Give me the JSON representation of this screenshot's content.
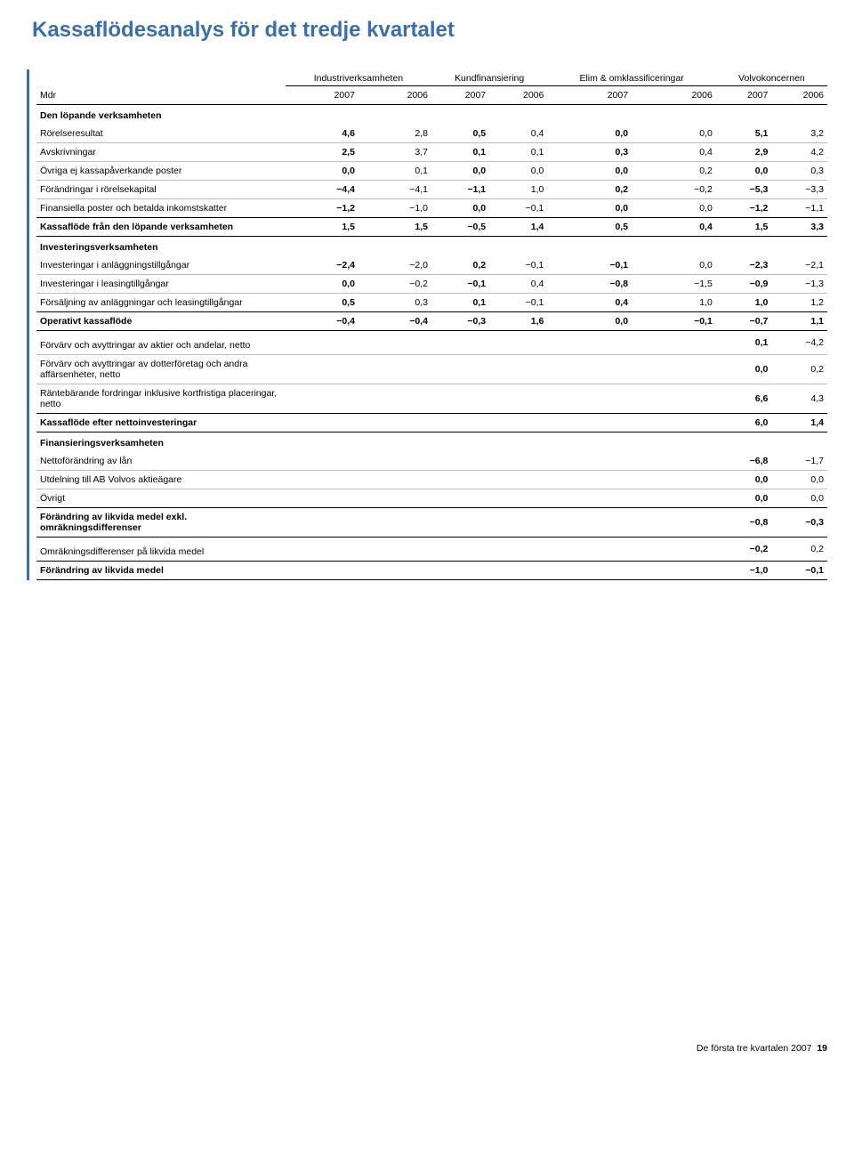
{
  "title": "Kassaflödesanalys för det tredje kvartalet",
  "header": {
    "mdr": "Mdr",
    "groups": [
      "Industriverksamheten",
      "Kundfinansiering",
      "Elim & omklassificeringar",
      "Volvokoncernen"
    ],
    "years": [
      "2007",
      "2006",
      "2007",
      "2006",
      "2007",
      "2006",
      "2007",
      "2006"
    ]
  },
  "sections": {
    "operating": {
      "label": "Den löpande verksamheten",
      "rows": [
        {
          "l": "Rörelseresultat",
          "v": [
            "4,6",
            "2,8",
            "0,5",
            "0,4",
            "0,0",
            "0,0",
            "5,1",
            "3,2"
          ]
        },
        {
          "l": "Avskrivningar",
          "v": [
            "2,5",
            "3,7",
            "0,1",
            "0,1",
            "0,3",
            "0,4",
            "2,9",
            "4,2"
          ]
        },
        {
          "l": "Övriga ej kassapåverkande poster",
          "v": [
            "0,0",
            "0,1",
            "0,0",
            "0,0",
            "0,0",
            "0,2",
            "0,0",
            "0,3"
          ]
        },
        {
          "l": "Förändringar i rörelsekapital",
          "v": [
            "−4,4",
            "−4,1",
            "−1,1",
            "1,0",
            "0,2",
            "−0,2",
            "−5,3",
            "−3,3"
          ]
        },
        {
          "l": "Finansiella poster och betalda inkomstskatter",
          "v": [
            "−1,2",
            "−1,0",
            "0,0",
            "−0,1",
            "0,0",
            "0,0",
            "−1,2",
            "−1,1"
          ]
        }
      ],
      "total": {
        "l": "Kassaflöde från den löpande verksamheten",
        "v": [
          "1,5",
          "1,5",
          "−0,5",
          "1,4",
          "0,5",
          "0,4",
          "1,5",
          "3,3"
        ]
      }
    },
    "investing": {
      "label": "Investeringsverksamheten",
      "rows": [
        {
          "l": "Investeringar i anläggningstillgångar",
          "v": [
            "−2,4",
            "−2,0",
            "0,2",
            "−0,1",
            "−0,1",
            "0,0",
            "−2,3",
            "−2,1"
          ]
        },
        {
          "l": "Investeringar i leasingtillgångar",
          "v": [
            "0,0",
            "−0,2",
            "−0,1",
            "0,4",
            "−0,8",
            "−1,5",
            "−0,9",
            "−1,3"
          ]
        },
        {
          "l": "Försäljning av anläggningar och leasingtillgångar",
          "v": [
            "0,5",
            "0,3",
            "0,1",
            "−0,1",
            "0,4",
            "1,0",
            "1,0",
            "1,2"
          ]
        }
      ],
      "total": {
        "l": "Operativt kassaflöde",
        "v": [
          "−0,4",
          "−0,4",
          "−0,3",
          "1,6",
          "0,0",
          "−0,1",
          "−0,7",
          "1,1"
        ]
      }
    },
    "acq": {
      "rows": [
        {
          "l": "Förvärv och avyttringar av aktier och andelar, netto",
          "v": [
            "",
            "",
            "",
            "",
            "",
            "",
            "0,1",
            "−4,2"
          ]
        },
        {
          "l": "Förvärv och avyttringar av dotterföretag och andra affärsenheter, netto",
          "v": [
            "",
            "",
            "",
            "",
            "",
            "",
            "0,0",
            "0,2"
          ]
        },
        {
          "l": "Räntebärande fordringar inklusive kortfristiga placeringar, netto",
          "v": [
            "",
            "",
            "",
            "",
            "",
            "",
            "6,6",
            "4,3"
          ]
        }
      ],
      "total": {
        "l": "Kassaflöde efter nettoinvesteringar",
        "v": [
          "",
          "",
          "",
          "",
          "",
          "",
          "6,0",
          "1,4"
        ]
      }
    },
    "financing": {
      "label": "Finansieringsverksamheten",
      "rows": [
        {
          "l": "Nettoförändring av lån",
          "v": [
            "",
            "",
            "",
            "",
            "",
            "",
            "−6,8",
            "−1,7"
          ]
        },
        {
          "l": "Utdelning till AB Volvos aktieägare",
          "v": [
            "",
            "",
            "",
            "",
            "",
            "",
            "0,0",
            "0,0"
          ]
        },
        {
          "l": "Övrigt",
          "v": [
            "",
            "",
            "",
            "",
            "",
            "",
            "0,0",
            "0,0"
          ]
        }
      ],
      "total": {
        "l": "Förändring av likvida medel exkl. omräkningsdifferenser",
        "v": [
          "",
          "",
          "",
          "",
          "",
          "",
          "−0,8",
          "−0,3"
        ]
      }
    },
    "fx": {
      "rows": [
        {
          "l": "Omräkningsdifferenser på likvida medel",
          "v": [
            "",
            "",
            "",
            "",
            "",
            "",
            "−0,2",
            "0,2"
          ]
        }
      ],
      "total": {
        "l": "Förändring av likvida medel",
        "v": [
          "",
          "",
          "",
          "",
          "",
          "",
          "−1,0",
          "−0,1"
        ]
      }
    }
  },
  "footer": {
    "text": "De första tre kvartalen 2007",
    "page": "19"
  },
  "colors": {
    "accent": "#3a6fa9",
    "text": "#000000",
    "rule_thin": "#bbbbbb",
    "background": "#ffffff"
  }
}
